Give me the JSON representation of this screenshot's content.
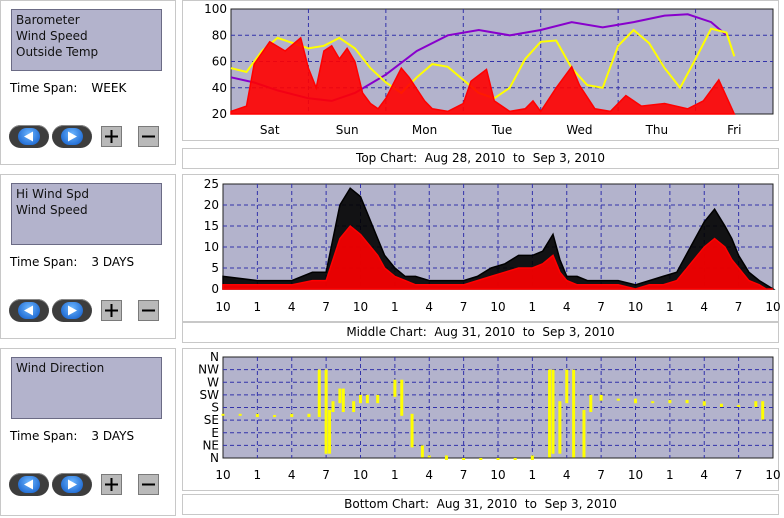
{
  "panels": [
    {
      "list_items": [
        "Barometer",
        "Wind Speed",
        "Outside Temp"
      ],
      "time_span_label": "Time Span:",
      "time_span_value": "WEEK",
      "caption": "Top Chart:  Aug 28, 2010  to  Sep 3, 2010"
    },
    {
      "list_items": [
        "Hi Wind Spd",
        "Wind Speed"
      ],
      "time_span_label": "Time Span:",
      "time_span_value": "3 DAYS",
      "caption": "Middle Chart:  Aug 31, 2010  to  Sep 3, 2010"
    },
    {
      "list_items": [
        "Wind Direction"
      ],
      "time_span_label": "Time Span:",
      "time_span_value": "3 DAYS",
      "caption": "Bottom Chart:  Aug 31, 2010  to  Sep 3, 2010"
    }
  ],
  "buttons": {
    "back": "back-arrow-icon",
    "forward": "forward-arrow-icon",
    "plus": "+",
    "minus": "−"
  },
  "colors": {
    "plot_bg": "#b3b3cc",
    "grid": "#3333aa",
    "red": "#ff0000",
    "purple": "#8800cc",
    "yellow": "#ffff00",
    "black": "#000000"
  },
  "chart_data": [
    {
      "type": "line",
      "y_ticks": [
        "100",
        "80",
        "60",
        "40",
        "20"
      ],
      "ylim": [
        20,
        100
      ],
      "x_labels": [
        "Sat",
        "Sun",
        "Mon",
        "Tue",
        "Wed",
        "Thu",
        "Fri"
      ],
      "series": [
        {
          "color": "purple",
          "x": [
            0,
            0.3,
            0.6,
            1.0,
            1.3,
            1.6,
            2.0,
            2.4,
            2.8,
            3.2,
            3.6,
            4.0,
            4.4,
            4.8,
            5.2,
            5.6,
            5.9,
            6.2,
            6.4
          ],
          "values": [
            48,
            44,
            38,
            32,
            30,
            36,
            50,
            68,
            80,
            84,
            80,
            84,
            90,
            86,
            90,
            95,
            96,
            90,
            80
          ]
        },
        {
          "color": "yellow",
          "x": [
            0,
            0.2,
            0.4,
            0.6,
            0.8,
            1.0,
            1.2,
            1.4,
            1.6,
            1.8,
            2.0,
            2.2,
            2.4,
            2.6,
            2.8,
            3.0,
            3.2,
            3.4,
            3.6,
            3.8,
            4.0,
            4.2,
            4.4,
            4.6,
            4.8,
            5.0,
            5.2,
            5.4,
            5.6,
            5.8,
            6.0,
            6.2,
            6.4,
            6.5
          ],
          "values": [
            55,
            52,
            68,
            78,
            74,
            70,
            72,
            78,
            70,
            55,
            44,
            36,
            48,
            58,
            56,
            46,
            36,
            32,
            40,
            62,
            75,
            76,
            55,
            42,
            40,
            72,
            84,
            74,
            55,
            40,
            62,
            85,
            82,
            64
          ]
        },
        {
          "color": "red",
          "x": [
            0,
            0.2,
            0.3,
            0.5,
            0.7,
            0.9,
            1.0,
            1.1,
            1.2,
            1.3,
            1.4,
            1.5,
            1.6,
            1.7,
            1.8,
            1.9,
            2.0,
            2.2,
            2.3,
            2.5,
            2.6,
            2.8,
            3.0,
            3.1,
            3.3,
            3.4,
            3.6,
            3.8,
            3.9,
            4.0,
            4.2,
            4.4,
            4.5,
            4.7,
            4.9,
            5.1,
            5.3,
            5.6,
            5.9,
            6.1,
            6.3,
            6.5
          ],
          "values": [
            22,
            26,
            58,
            75,
            68,
            78,
            55,
            40,
            68,
            72,
            62,
            70,
            60,
            36,
            28,
            24,
            32,
            55,
            48,
            30,
            24,
            22,
            28,
            45,
            54,
            30,
            22,
            24,
            30,
            22,
            40,
            56,
            42,
            24,
            22,
            34,
            26,
            28,
            24,
            30,
            46,
            20
          ]
        }
      ]
    },
    {
      "type": "line",
      "y_ticks": [
        "25",
        "20",
        "15",
        "10",
        "5",
        "0"
      ],
      "ylim": [
        0,
        25
      ],
      "x_labels": [
        "10",
        "1",
        "4",
        "7",
        "10",
        "1",
        "4",
        "7",
        "10",
        "1",
        "4",
        "7",
        "10",
        "1",
        "4",
        "7",
        "10"
      ],
      "series": [
        {
          "name": "Hi Wind Spd",
          "color": "black",
          "x": [
            0,
            1,
            2,
            2.6,
            3,
            3.4,
            3.7,
            4,
            4.2,
            4.5,
            4.7,
            5,
            5.3,
            5.6,
            6,
            6.5,
            7,
            7.4,
            7.8,
            8.2,
            8.6,
            9,
            9.3,
            9.6,
            9.8,
            10,
            10.3,
            10.6,
            11,
            11.5,
            12,
            12.4,
            12.8,
            13.2,
            13.6,
            14,
            14.3,
            14.6,
            14.8,
            15,
            15.3,
            15.6,
            15.8,
            16
          ],
          "values": [
            3,
            2,
            2,
            4,
            4,
            20,
            24,
            22,
            18,
            12,
            8,
            5,
            3,
            3,
            2,
            2,
            2,
            3,
            5,
            6,
            8,
            8,
            9,
            13,
            7,
            3,
            3,
            2,
            2,
            2,
            1,
            2,
            3,
            4,
            10,
            16,
            19,
            15,
            12,
            8,
            4,
            2,
            1,
            0
          ]
        },
        {
          "name": "Wind Speed",
          "color": "red",
          "x": [
            0,
            1,
            2,
            2.6,
            3,
            3.4,
            3.7,
            4,
            4.2,
            4.5,
            4.7,
            5,
            5.3,
            5.6,
            6,
            6.5,
            7,
            7.4,
            7.8,
            8.2,
            8.6,
            9,
            9.3,
            9.6,
            9.8,
            10,
            10.3,
            10.6,
            11,
            11.5,
            12,
            12.4,
            12.8,
            13.2,
            13.6,
            14,
            14.3,
            14.6,
            14.8,
            15,
            15.3,
            15.6,
            15.8,
            16
          ],
          "values": [
            1,
            1,
            1,
            2,
            2,
            12,
            15,
            13,
            11,
            8,
            5,
            3,
            2,
            1,
            1,
            1,
            1,
            2,
            3,
            4,
            5,
            5,
            6,
            8,
            4,
            2,
            1,
            1,
            1,
            1,
            0,
            1,
            1,
            2,
            6,
            10,
            12,
            10,
            7,
            5,
            2,
            1,
            0,
            0
          ]
        }
      ]
    },
    {
      "type": "scatter",
      "y_ticks": [
        "N",
        "NW",
        "W",
        "SW",
        "S",
        "SE",
        "E",
        "NE",
        "N"
      ],
      "x_labels": [
        "10",
        "1",
        "4",
        "7",
        "10",
        "1",
        "4",
        "7",
        "10",
        "1",
        "4",
        "7",
        "10",
        "1",
        "4",
        "7",
        "10"
      ],
      "series": [
        {
          "name": "Wind Direction",
          "color": "yellow",
          "x": [
            0,
            0.5,
            1,
            1.5,
            2,
            2.5,
            2.8,
            3,
            3.1,
            3.2,
            3.4,
            3.5,
            3.8,
            4,
            4.2,
            4.5,
            5,
            5.2,
            5.5,
            5.8,
            6,
            6.5,
            7,
            7.5,
            8,
            8.5,
            9,
            9.5,
            9.6,
            9.8,
            10,
            10.2,
            10.5,
            10.7,
            11,
            11.5,
            12,
            12.5,
            13,
            13.5,
            14,
            14.5,
            15,
            15.5,
            15.7
          ],
          "values": [
            4.5,
            4.5,
            4.6,
            4.6,
            4.5,
            4.6,
            1.0,
            7.5,
            4.2,
            3.5,
            2.5,
            4.2,
            3.5,
            3.0,
            3.5,
            3.0,
            1.8,
            4.5,
            7.0,
            7.8,
            7.8,
            8.0,
            8.0,
            8.0,
            8.0,
            8.0,
            7.8,
            1.0,
            7.5,
            3.5,
            1.0,
            7.8,
            4.2,
            3.0,
            3.3,
            3.3,
            3.5,
            3.5,
            3.4,
            3.5,
            3.7,
            3.8,
            3.8,
            3.5,
            4.8
          ]
        }
      ]
    }
  ]
}
